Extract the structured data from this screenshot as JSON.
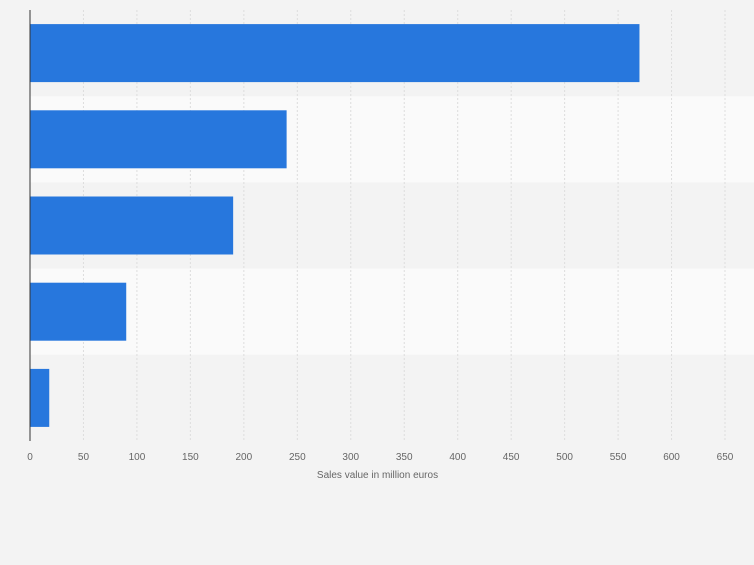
{
  "chart_data": {
    "type": "bar",
    "orientation": "horizontal",
    "categories": [
      "",
      "",
      "",
      "",
      ""
    ],
    "values": [
      570,
      240,
      190,
      90,
      18
    ],
    "title": "",
    "xlabel": "Sales value in million euros",
    "ylabel": "",
    "xlim": [
      0,
      650
    ],
    "xticks": [
      0,
      50,
      100,
      150,
      200,
      250,
      300,
      350,
      400,
      450,
      500,
      550,
      600,
      650
    ],
    "grid": true,
    "legend": "none"
  },
  "colors": {
    "bar": "#2777dd",
    "background": "#f3f3f3",
    "band_light": "#fafafa",
    "band_dark": "#f3f3f3",
    "grid": "#dddddd",
    "axis": "#333333",
    "text": "#666666"
  }
}
